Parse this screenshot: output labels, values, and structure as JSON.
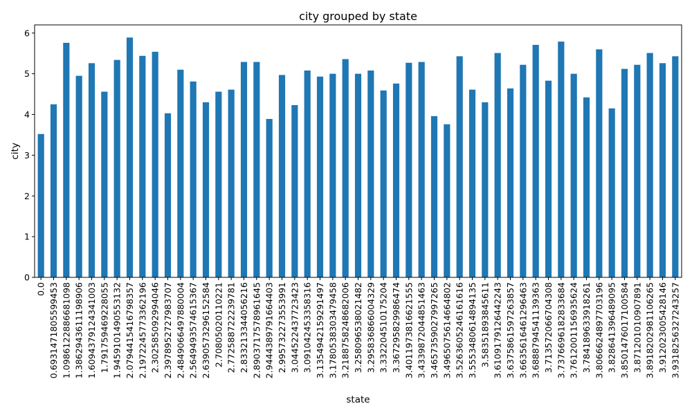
{
  "chart_data": {
    "type": "bar",
    "title": "city grouped by state",
    "xlabel": "state",
    "ylabel": "city",
    "ylim": [
      0,
      6.2
    ],
    "yticks": [
      "0",
      "1",
      "2",
      "3",
      "4",
      "5",
      "6"
    ],
    "grid": false,
    "legend": "none",
    "bar_color": "#1f77b4",
    "categories": [
      "0.0",
      "0.6931471805599453",
      "1.0986122886681098",
      "1.3862943611198906",
      "1.6094379124341003",
      "1.791759469228055",
      "1.9459101490553132",
      "2.0794415416798357",
      "2.1972245773362196",
      "2.302585092994046",
      "2.3978952727983707",
      "2.4849066497880004",
      "2.5649493574615367",
      "2.6390573296152584",
      "2.70805020110221",
      "2.772588722239781",
      "2.833213344056216",
      "2.8903717578961645",
      "2.9444389791664403",
      "2.995732273553991",
      "3.044522437723423",
      "3.091042453358316",
      "3.1354942159291497",
      "3.1780538303479458",
      "3.2188758248682006",
      "3.258096538021482",
      "3.295836866004329",
      "3.332204510175204",
      "3.367295829986474",
      "3.4011973816621555",
      "3.4339872044851463",
      "3.4657359027997265",
      "3.4965075614664802",
      "3.5263605246161616",
      "3.5553480614894135",
      "3.58351893845611",
      "3.6109179126442243",
      "3.6375861597263857",
      "3.6635616461296463",
      "3.6888794541139363",
      "3.713572066704308",
      "3.7376696182833684",
      "3.7612001156935624",
      "3.784189633918261",
      "3.8066624897703196",
      "3.828641396489095",
      "3.8501476017100584",
      "3.871201010907891",
      "3.8918202981106265",
      "3.912023005428146",
      "3.9318256327243257"
    ],
    "values": [
      3.52,
      4.25,
      5.76,
      4.95,
      5.26,
      4.56,
      5.34,
      5.89,
      5.44,
      5.54,
      4.03,
      5.1,
      4.81,
      4.3,
      4.56,
      4.61,
      5.29,
      5.29,
      3.89,
      4.97,
      4.23,
      5.08,
      4.93,
      5.0,
      5.36,
      5.0,
      5.08,
      4.59,
      4.76,
      5.27,
      5.29,
      3.96,
      3.76,
      5.43,
      4.61,
      4.3,
      5.51,
      4.64,
      5.22,
      5.71,
      4.83,
      5.79,
      5.0,
      4.42,
      5.6,
      4.15,
      5.12,
      5.22,
      5.51,
      5.26,
      5.43
    ]
  }
}
